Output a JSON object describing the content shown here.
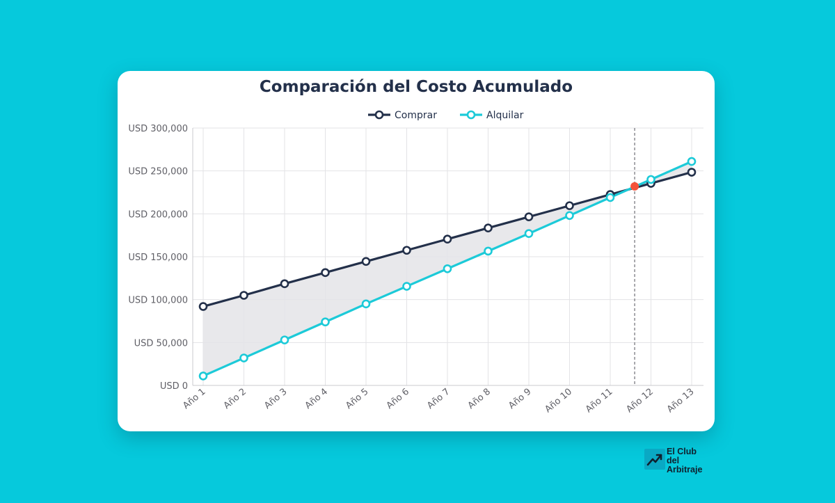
{
  "chart_data": {
    "type": "line",
    "title": "Comparación del Costo Acumulado",
    "categories": [
      "Año 1",
      "Año 2",
      "Año 3",
      "Año 4",
      "Año 5",
      "Año 6",
      "Año 7",
      "Año 8",
      "Año 9",
      "Año 10",
      "Año 11",
      "Año 12",
      "Año 13"
    ],
    "series": [
      {
        "name": "Comprar",
        "color": "#23304a",
        "values": [
          92000,
          105000,
          118500,
          131500,
          144500,
          157500,
          170500,
          183500,
          196500,
          209500,
          222500,
          235500,
          248500
        ]
      },
      {
        "name": "Alquilar",
        "color": "#1ccad8",
        "values": [
          11000,
          32000,
          53000,
          74000,
          95000,
          115500,
          136000,
          156500,
          177000,
          198000,
          219000,
          240000,
          261000
        ]
      }
    ],
    "ylim": [
      0,
      300000
    ],
    "yticks": [
      0,
      50000,
      100000,
      150000,
      200000,
      250000,
      300000
    ],
    "ytick_labels": [
      "USD 0",
      "USD 50,000",
      "USD 100,000",
      "USD 150,000",
      "USD 200,000",
      "USD 250,000",
      "USD 300,000"
    ],
    "intersection": {
      "x": 11.6,
      "y": 232000,
      "color": "#f4533a"
    },
    "legend_position": "top-center",
    "grid": true,
    "fill_between": "#e4e4e8"
  },
  "brand": {
    "line1": "El Club",
    "line2": "del",
    "line3": "Arbitraje",
    "icon": "trending-up-icon",
    "color": "#0aa9c4"
  }
}
